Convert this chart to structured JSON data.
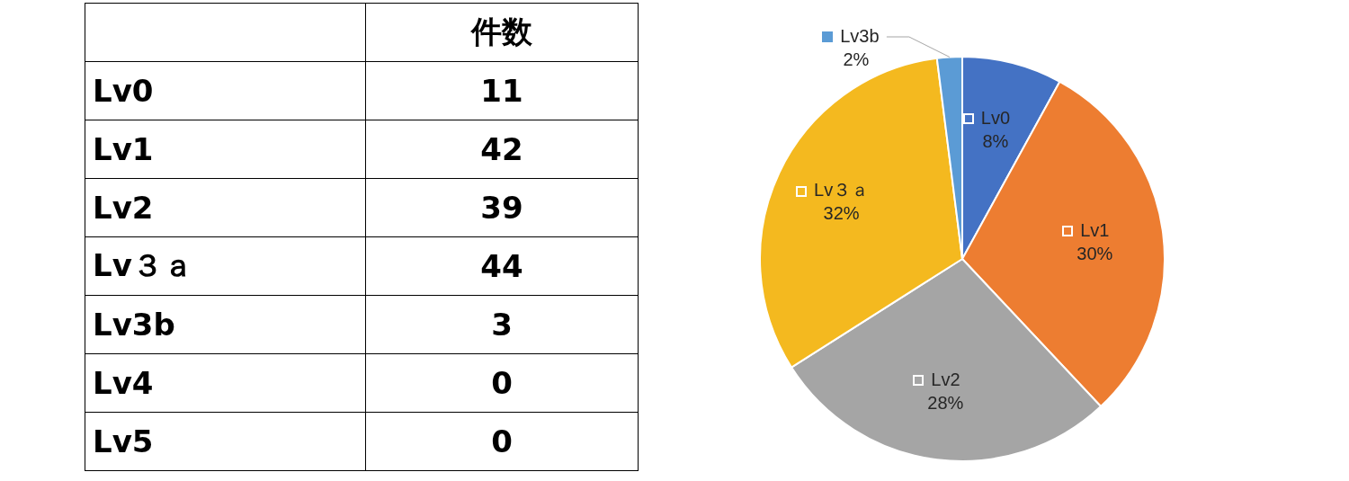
{
  "chart_data": [
    {
      "type": "other",
      "categories": [
        "Lv0",
        "Lv1",
        "Lv2",
        "Lv３ａ",
        "Lv3b",
        "Lv4",
        "Lv5"
      ],
      "values": [
        11,
        42,
        39,
        44,
        3,
        0,
        0
      ],
      "data_labels": true,
      "annotations": [
        "件数"
      ]
    },
    {
      "type": "pie",
      "categories": [
        "Lv0",
        "Lv1",
        "Lv2",
        "Lv３ａ",
        "Lv3b"
      ],
      "values": [
        8,
        30,
        28,
        32,
        2
      ],
      "colors": [
        "#4472c4",
        "#ed7d31",
        "#a5a5a5",
        "#f4b91f",
        "#5b9bd5"
      ],
      "value_labels": [
        "8%",
        "30%",
        "28%",
        "32%",
        "2%"
      ]
    }
  ]
}
